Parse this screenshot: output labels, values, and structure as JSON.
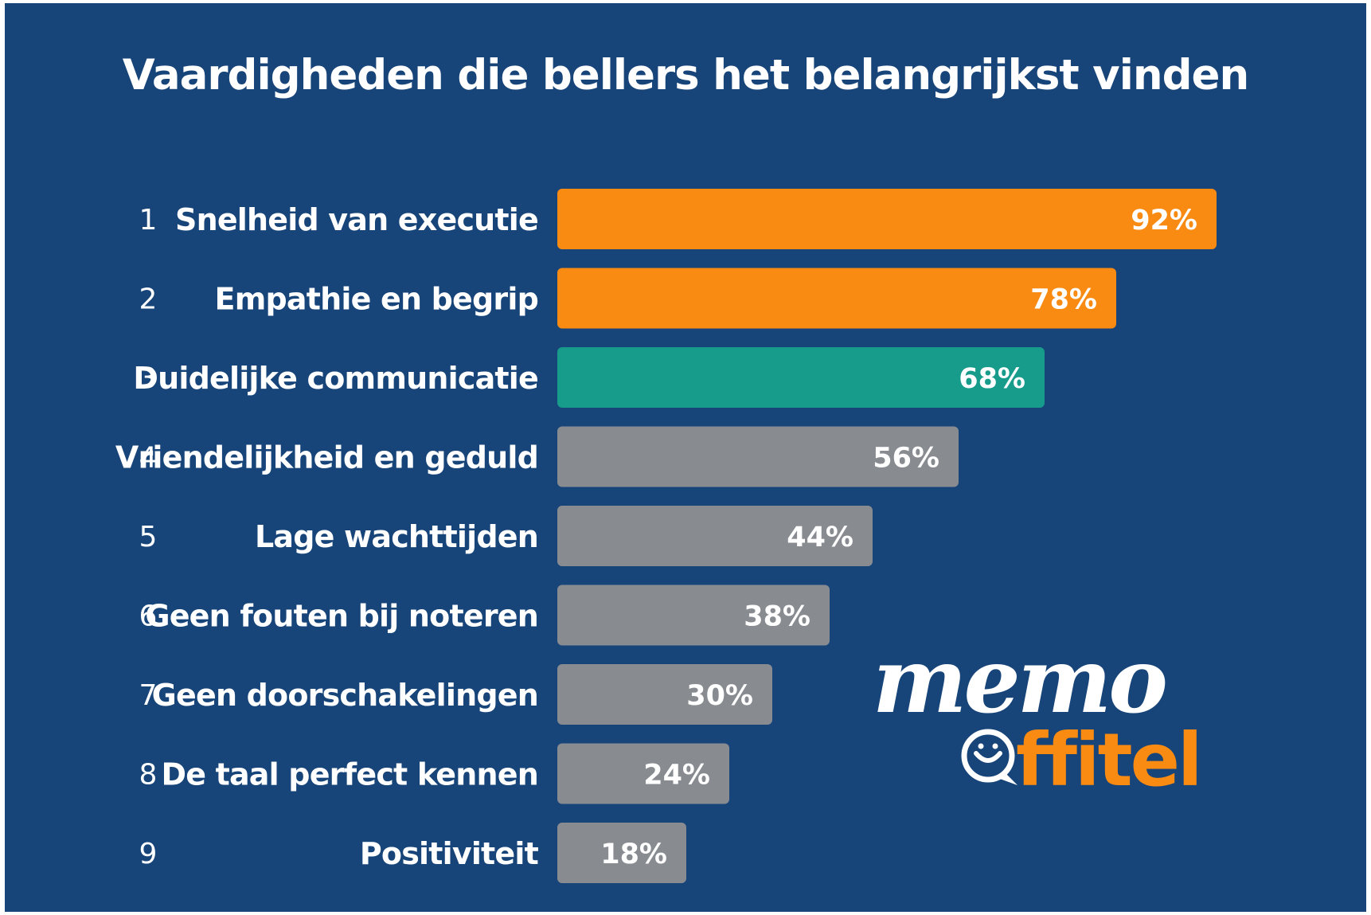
{
  "chart_data": {
    "type": "bar",
    "orientation": "horizontal",
    "title": "Vaardigheden die bellers het belangrijkst vinden",
    "ranks": [
      "1",
      "2",
      "3",
      "4",
      "5",
      "6",
      "7",
      "8",
      "9"
    ],
    "categories": [
      "Snelheid van executie",
      "Empathie en begrip",
      "Duidelijke communicatie",
      "Vriendelijkheid en geduld",
      "Lage wachttijden",
      "Geen fouten bij noteren",
      "Geen doorschakelingen",
      "De taal perfect kennen",
      "Positiviteit"
    ],
    "values": [
      92,
      78,
      68,
      56,
      44,
      38,
      30,
      24,
      18
    ],
    "value_labels": [
      "92%",
      "78%",
      "68%",
      "56%",
      "44%",
      "38%",
      "30%",
      "24%",
      "18%"
    ],
    "bar_colors": [
      "#f98a12",
      "#f98a12",
      "#179b8b",
      "#888c91",
      "#888c91",
      "#888c91",
      "#888c91",
      "#888c91",
      "#888c91"
    ],
    "xlim": [
      0,
      100
    ],
    "grid": false,
    "legend": "none"
  },
  "colors": {
    "background": "#174479",
    "text": "#ffffff",
    "orange": "#f98a12",
    "teal": "#179b8b",
    "gray": "#888c91"
  },
  "logo": {
    "script_text": "memo",
    "brand_text": "ffitel",
    "icon": "smiley-chat-bubble-icon"
  }
}
